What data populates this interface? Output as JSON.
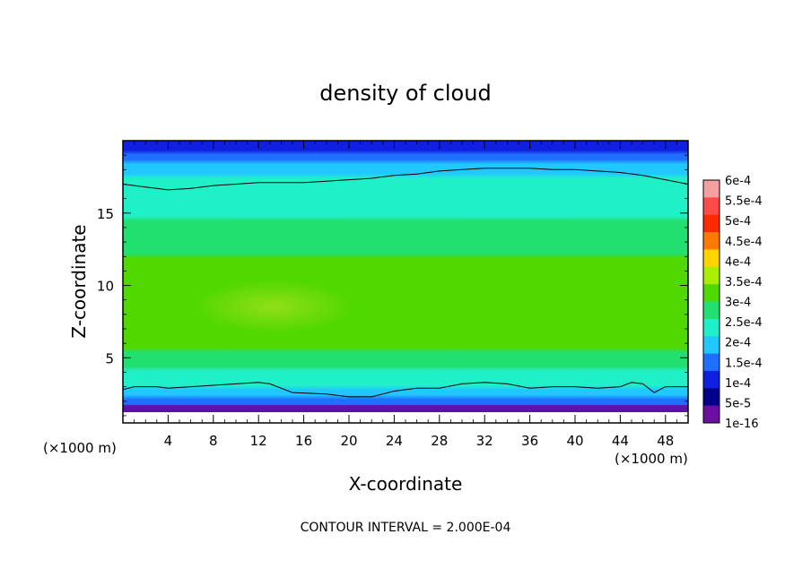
{
  "chart_data": {
    "type": "heatmap",
    "title": "density of cloud",
    "xlabel": "X-coordinate",
    "ylabel": "Z-coordinate",
    "x_unit_left": "(×1000 m)",
    "x_unit_right": "(×1000 m)",
    "xlim": [
      0,
      50
    ],
    "ylim": [
      0.5,
      20
    ],
    "x_ticks": [
      "4",
      "8",
      "12",
      "16",
      "20",
      "24",
      "28",
      "32",
      "36",
      "40",
      "44",
      "48"
    ],
    "x_tick_values": [
      4,
      8,
      12,
      16,
      20,
      24,
      28,
      32,
      36,
      40,
      44,
      48
    ],
    "y_ticks": [
      "5",
      "10",
      "15"
    ],
    "y_tick_values": [
      5,
      10,
      15
    ],
    "footer": "CONTOUR INTERVAL = 2.000E-04",
    "contour_interval": 0.0002,
    "colorbar": {
      "labels": [
        "6e-4",
        "5.5e-4",
        "5e-4",
        "4.5e-4",
        "4e-4",
        "3.5e-4",
        "3e-4",
        "2.5e-4",
        "2e-4",
        "1.5e-4",
        "1e-4",
        "5e-5",
        "1e-16"
      ],
      "values": [
        0.0006,
        0.00055,
        0.0005,
        0.00045,
        0.0004,
        0.00035,
        0.0003,
        0.00025,
        0.0002,
        0.00015,
        0.0001,
        5e-05,
        1e-16
      ],
      "colors": [
        "#f5a0a0",
        "#ff4a4a",
        "#ff2a00",
        "#ff7a00",
        "#ffd400",
        "#a8f000",
        "#50d800",
        "#22e070",
        "#20f0c8",
        "#20c8ff",
        "#2070ff",
        "#1020e0",
        "#00008a",
        "#6a0fa0"
      ]
    },
    "z_profile": [
      {
        "z": 0.5,
        "value": 0
      },
      {
        "z": 1.0,
        "value": 4e-05
      },
      {
        "z": 1.5,
        "value": 8e-05
      },
      {
        "z": 2.0,
        "value": 0.00012
      },
      {
        "z": 2.5,
        "value": 0.00016
      },
      {
        "z": 3.0,
        "value": 0.0002
      },
      {
        "z": 4.0,
        "value": 0.00024
      },
      {
        "z": 5.0,
        "value": 0.00028
      },
      {
        "z": 6.0,
        "value": 0.00031
      },
      {
        "z": 8.0,
        "value": 0.00035
      },
      {
        "z": 10.0,
        "value": 0.00033
      },
      {
        "z": 12.0,
        "value": 0.0003
      },
      {
        "z": 14.0,
        "value": 0.00026
      },
      {
        "z": 16.0,
        "value": 0.00022
      },
      {
        "z": 17.5,
        "value": 0.0002
      },
      {
        "z": 18.5,
        "value": 0.00015
      },
      {
        "z": 19.3,
        "value": 0.0001
      },
      {
        "z": 20.0,
        "value": 5e-05
      }
    ],
    "contour_lines": [
      {
        "level": 0.0002,
        "x": [
          0,
          2,
          4,
          6,
          8,
          10,
          12,
          14,
          16,
          18,
          20,
          22,
          24,
          26,
          28,
          30,
          32,
          34,
          36,
          38,
          40,
          42,
          44,
          46,
          48,
          50
        ],
        "z": [
          17.0,
          16.8,
          16.6,
          16.7,
          16.9,
          17.0,
          17.1,
          17.1,
          17.1,
          17.2,
          17.3,
          17.4,
          17.6,
          17.7,
          17.9,
          18.0,
          18.1,
          18.1,
          18.1,
          18.0,
          18.0,
          17.9,
          17.8,
          17.6,
          17.3,
          17.0
        ]
      },
      {
        "level": 0.0001,
        "x": [
          0,
          1,
          3,
          4,
          6,
          8,
          10,
          12,
          13,
          15,
          18,
          20,
          22,
          24,
          26,
          28,
          30,
          32,
          34,
          36,
          38,
          40,
          42,
          44,
          45,
          46,
          47,
          48,
          50
        ],
        "z": [
          2.8,
          3.0,
          3.0,
          2.9,
          3.0,
          3.1,
          3.2,
          3.3,
          3.2,
          2.6,
          2.5,
          2.3,
          2.3,
          2.7,
          2.9,
          2.9,
          3.2,
          3.3,
          3.2,
          2.9,
          3.0,
          3.0,
          2.9,
          3.0,
          3.3,
          3.2,
          2.6,
          3.0,
          3.0
        ]
      }
    ]
  }
}
